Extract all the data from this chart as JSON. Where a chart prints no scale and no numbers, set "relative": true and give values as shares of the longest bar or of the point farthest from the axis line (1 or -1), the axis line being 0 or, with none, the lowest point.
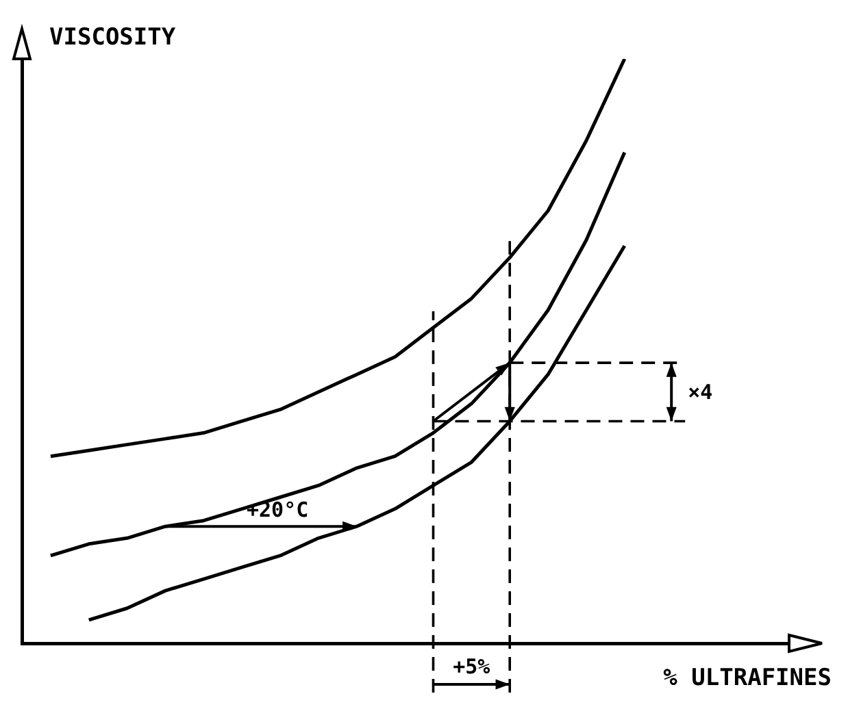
{
  "chart_data": {
    "type": "line",
    "relative": true,
    "xlabel": "% ULTRAFINES",
    "ylabel": "VISCOSITY",
    "marker": "none",
    "line_style": "solid",
    "categories": [
      null,
      null,
      null,
      null,
      null,
      null,
      null,
      null,
      null,
      null,
      null,
      null,
      null,
      null,
      null,
      null
    ],
    "series": [
      {
        "color": "#000000",
        "values": [
          0.32,
          0.33,
          0.34,
          0.35,
          0.36,
          0.38,
          0.4,
          0.43,
          0.46,
          0.49,
          0.54,
          0.59,
          0.66,
          0.74,
          0.86,
          1
        ]
      },
      {
        "color": "#000000",
        "values": [
          0.15,
          0.17,
          0.18,
          0.2,
          0.21,
          0.23,
          0.25,
          0.27,
          0.3,
          0.32,
          0.36,
          0.41,
          0.48,
          0.57,
          0.69,
          0.84
        ]
      },
      {
        "color": "#000000",
        "values": [
          null,
          0.04,
          0.06,
          0.09,
          0.11,
          0.13,
          0.15,
          0.18,
          0.2,
          0.23,
          0.27,
          0.31,
          0.38,
          0.46,
          0.57,
          0.68
        ]
      }
    ],
    "annotations": [
      "+20°C",
      "×4",
      "+5%"
    ]
  }
}
